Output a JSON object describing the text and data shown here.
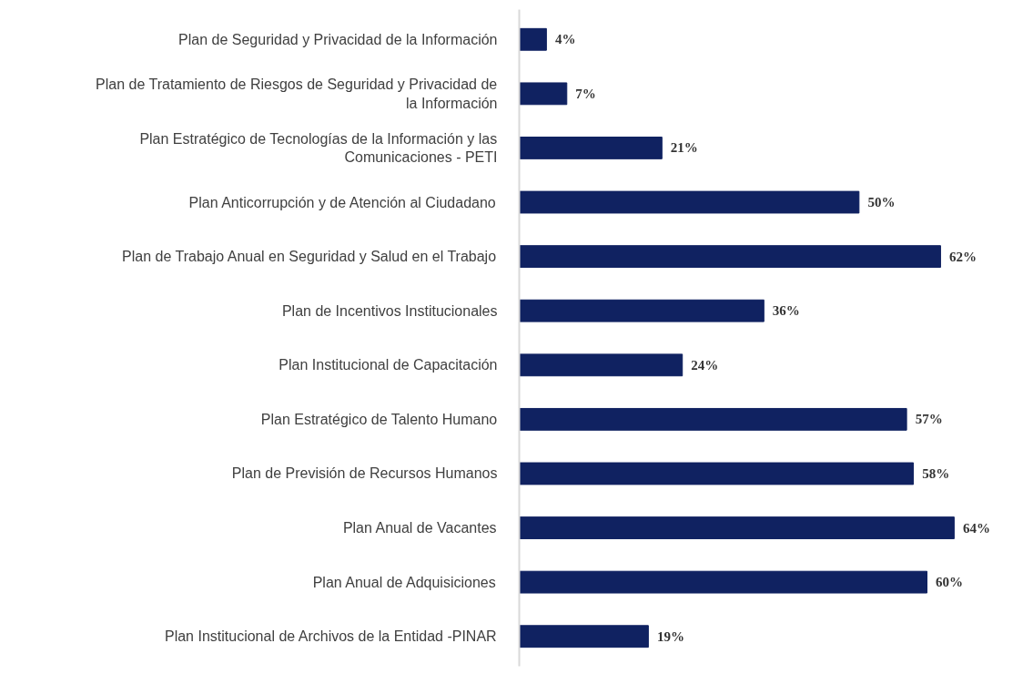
{
  "chart_data": {
    "type": "bar",
    "orientation": "horizontal",
    "color": "#102261",
    "categories": [
      "Plan de Seguridad y Privacidad de la Información",
      "Plan de Tratamiento de Riesgos de Seguridad y Privacidad de la Información",
      "Plan Estratégico de Tecnologías de la Información y las Comunicaciones - PETI",
      "Plan Anticorrupción y de Atención al Ciudadano",
      "Plan de Trabajo Anual en Seguridad y Salud en el Trabajo",
      "Plan de Incentivos Institucionales",
      "Plan Institucional de Capacitación",
      "Plan Estratégico de Talento Humano",
      "Plan de Previsión de Recursos Humanos",
      "Plan Anual de Vacantes",
      "Plan Anual de Adquisiciones",
      "Plan Institucional de Archivos de la Entidad -PINAR"
    ],
    "values": [
      4,
      7,
      21,
      50,
      62,
      36,
      24,
      57,
      58,
      64,
      60,
      19
    ],
    "value_labels": [
      "4%",
      "7%",
      "21%",
      "50%",
      "62%",
      "36%",
      "24%",
      "57%",
      "58%",
      "64%",
      "60%",
      "19%"
    ],
    "grid": false
  }
}
